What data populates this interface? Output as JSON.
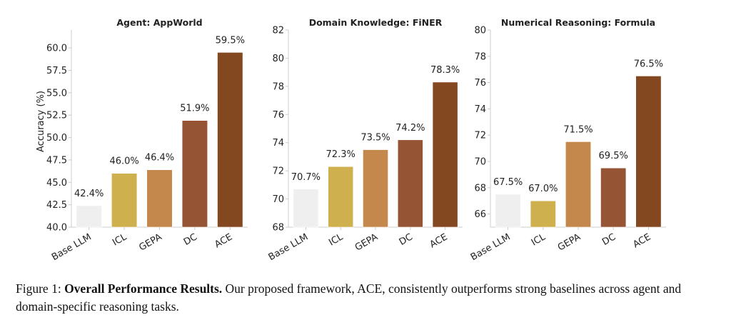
{
  "chart_data": [
    {
      "type": "bar",
      "title": "Agent: AppWorld",
      "ylabel": "Accuracy (%)",
      "xlabel": "",
      "categories": [
        "Base LLM",
        "ICL",
        "GEPA",
        "DC",
        "ACE"
      ],
      "values": [
        42.4,
        46.0,
        46.4,
        51.9,
        59.5
      ],
      "data_labels": [
        "42.4%",
        "46.0%",
        "46.4%",
        "51.9%",
        "59.5%"
      ],
      "ylim": [
        40,
        62
      ],
      "yticks": [
        40.0,
        42.5,
        45.0,
        47.5,
        50.0,
        52.5,
        55.0,
        57.5,
        60.0
      ],
      "ytick_labels": [
        "40.0",
        "42.5",
        "45.0",
        "47.5",
        "50.0",
        "52.5",
        "55.0",
        "57.5",
        "60.0"
      ],
      "grid": false
    },
    {
      "type": "bar",
      "title": "Domain Knowledge: FiNER",
      "ylabel": "",
      "xlabel": "",
      "categories": [
        "Base LLM",
        "ICL",
        "GEPA",
        "DC",
        "ACE"
      ],
      "values": [
        70.7,
        72.3,
        73.5,
        74.2,
        78.3
      ],
      "data_labels": [
        "70.7%",
        "72.3%",
        "73.5%",
        "74.2%",
        "78.3%"
      ],
      "ylim": [
        68,
        82
      ],
      "yticks": [
        68,
        70,
        72,
        74,
        76,
        78,
        80,
        82
      ],
      "ytick_labels": [
        "68",
        "70",
        "72",
        "74",
        "76",
        "78",
        "80",
        "82"
      ],
      "grid": false
    },
    {
      "type": "bar",
      "title": "Numerical Reasoning: Formula",
      "ylabel": "",
      "xlabel": "",
      "categories": [
        "Base LLM",
        "ICL",
        "GEPA",
        "DC",
        "ACE"
      ],
      "values": [
        67.5,
        67.0,
        71.5,
        69.5,
        76.5
      ],
      "data_labels": [
        "67.5%",
        "67.0%",
        "71.5%",
        "69.5%",
        "76.5%"
      ],
      "ylim": [
        65,
        80
      ],
      "yticks": [
        66,
        68,
        70,
        72,
        74,
        76,
        78,
        80
      ],
      "ytick_labels": [
        "66",
        "68",
        "70",
        "72",
        "74",
        "76",
        "78",
        "80"
      ],
      "grid": false
    }
  ],
  "colors": {
    "Base LLM": "#efefef",
    "ICL": "#cfb04f",
    "GEPA": "#c4884c",
    "DC": "#955535",
    "ACE": "#834820",
    "axis": "#cccccc"
  },
  "caption": {
    "prefix": "Figure 1: ",
    "bold": "Overall Performance Results.",
    "text": " Our proposed framework, ACE, consistently outperforms strong baselines across agent and domain-specific reasoning tasks."
  }
}
